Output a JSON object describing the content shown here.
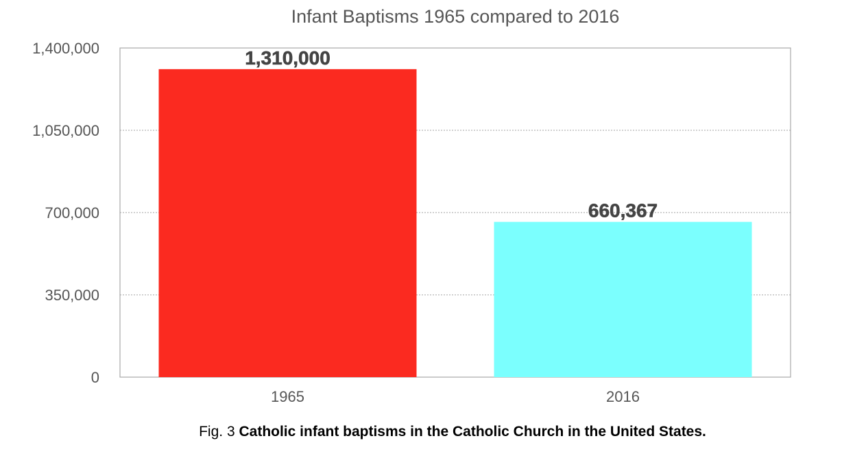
{
  "chart_data": {
    "type": "bar",
    "title": "Infant Baptisms 1965 compared to 2016",
    "categories": [
      "1965",
      "2016"
    ],
    "values": [
      1310000,
      660367
    ],
    "data_labels": [
      "1,310,000",
      "660,367"
    ],
    "bar_colors": [
      "#fb2a20",
      "#7bfffe"
    ],
    "ylim": [
      0,
      1400000
    ],
    "yticks": [
      0,
      350000,
      700000,
      1050000,
      1400000
    ],
    "ytick_labels": [
      "0",
      "350,000",
      "700,000",
      "1,050,000",
      "1,400,000"
    ],
    "grid": true,
    "legend": "none"
  },
  "caption": {
    "prefix": "Fig. 3",
    "text": "Catholic infant baptisms in the Catholic Church in the United States."
  }
}
